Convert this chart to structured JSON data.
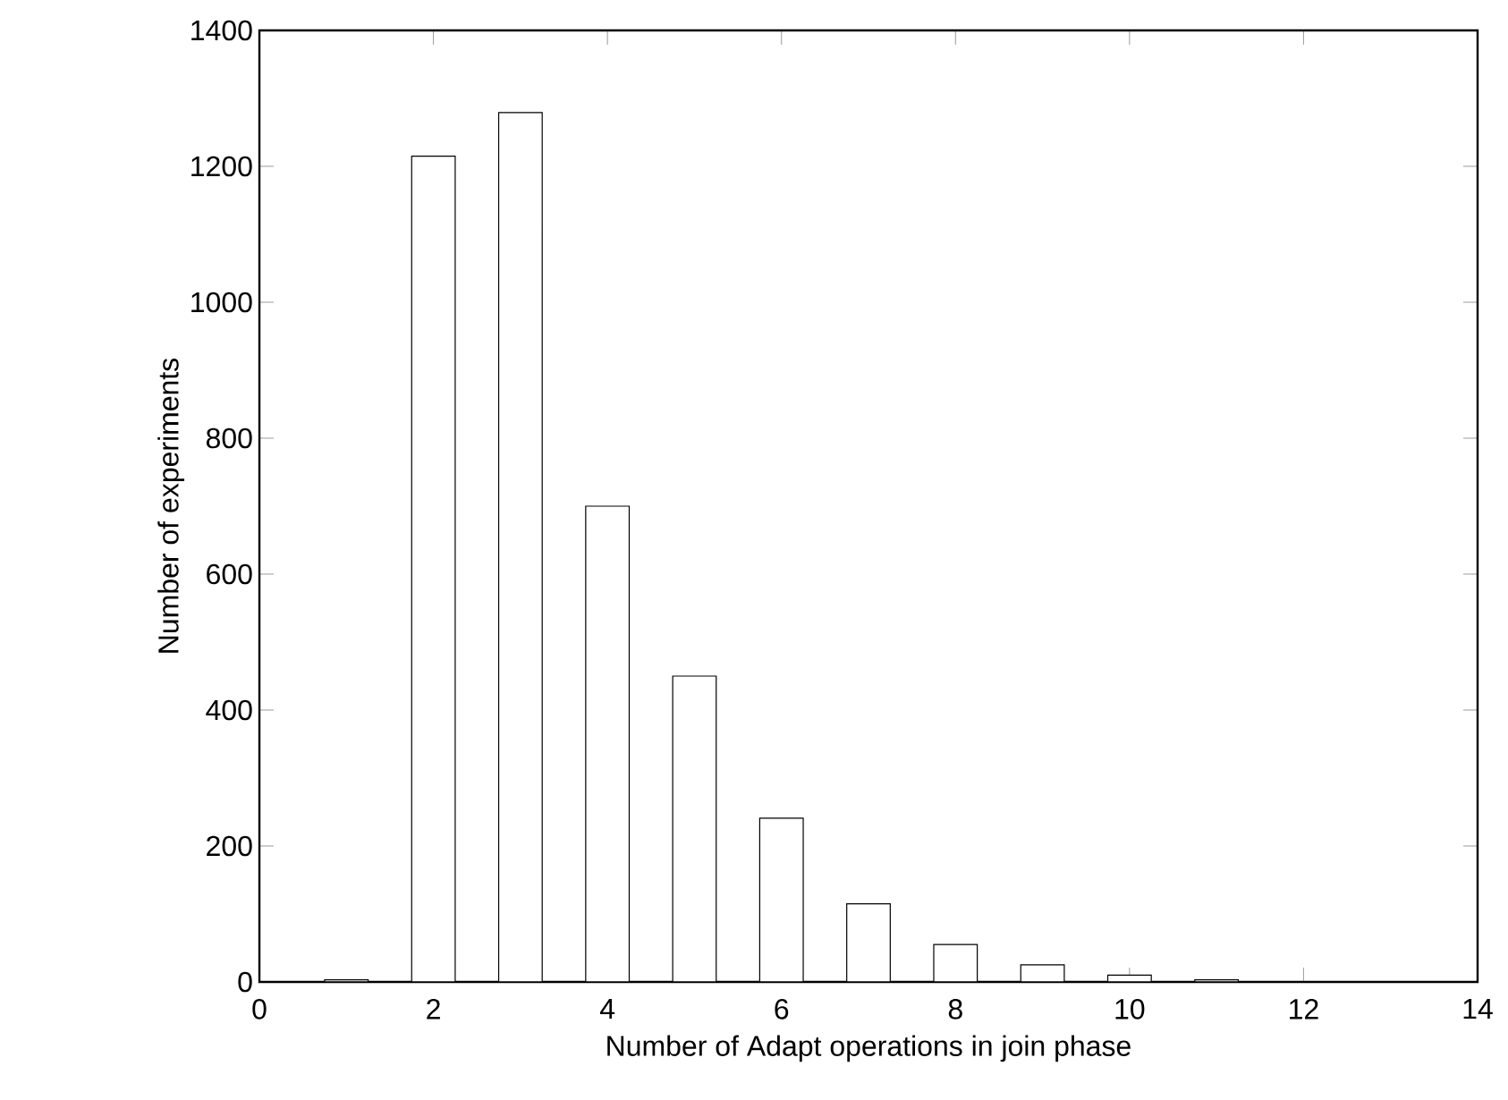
{
  "chart_data": {
    "type": "bar",
    "xlabel": "Number of Adapt operations in join phase",
    "ylabel": "Number of experiments",
    "x": [
      1,
      2,
      3,
      4,
      5,
      6,
      7,
      8,
      9,
      10,
      11
    ],
    "values": [
      3,
      1215,
      1279,
      700,
      450,
      241,
      115,
      55,
      25,
      10,
      3
    ],
    "color": "#ffffff",
    "xlim": [
      0,
      14
    ],
    "ylim": [
      0,
      1400
    ],
    "xticks": [
      0,
      2,
      4,
      6,
      8,
      10,
      12,
      14
    ],
    "yticks": [
      0,
      200,
      400,
      600,
      800,
      1000,
      1200,
      1400
    ],
    "grid": false
  }
}
